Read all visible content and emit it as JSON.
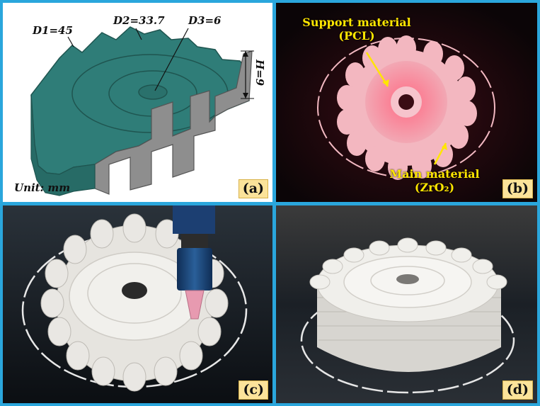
{
  "panels": {
    "a": {
      "tag": "(a)",
      "d1": "D1=45",
      "d2": "D2=33.7",
      "d3": "D3=6",
      "h": "H=9",
      "unit": "Unit: mm"
    },
    "b": {
      "tag": "(b)",
      "support_line1": "Support material",
      "support_line2": "(PCL)",
      "main_line1": "Main material",
      "main_line2": "(ZrO₂)"
    },
    "c": {
      "tag": "(c)"
    },
    "d": {
      "tag": "(d)"
    }
  },
  "colors": {
    "cad_teal": "#2f7d78",
    "cad_cut": "#8e8e8e",
    "label_yellow": "#ffe600",
    "border_blue": "#2aa6dc"
  }
}
